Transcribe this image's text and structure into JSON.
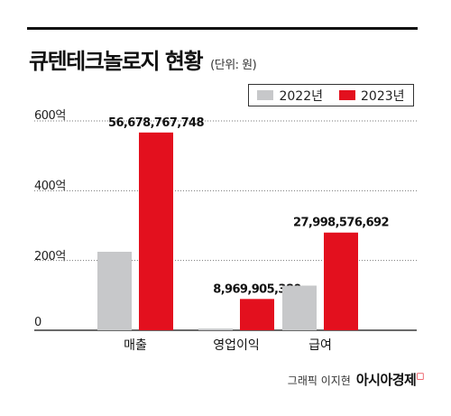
{
  "title": "큐텐테크놀로지 현황",
  "unit": "(단위: 원)",
  "legend": [
    {
      "label": "2022년",
      "color": "#c7c8ca"
    },
    {
      "label": "2023년",
      "color": "#e3101e"
    }
  ],
  "yticks": [
    "600억",
    "400억",
    "200억",
    "0"
  ],
  "footer": {
    "credit": "그래픽 이지현",
    "brand": "아시아경제"
  },
  "chart_data": {
    "type": "bar",
    "categories": [
      "매출",
      "영업이익",
      "급여"
    ],
    "series": [
      {
        "name": "2022년",
        "values": [
          22500000000,
          500000000,
          12800000000
        ]
      },
      {
        "name": "2023년",
        "values": [
          56678767748,
          8969905380,
          27998576692
        ]
      }
    ],
    "data_labels": [
      "56,678,767,748",
      "8,969,905,380",
      "27,998,576,692"
    ],
    "ylim": [
      0,
      60000000000
    ],
    "grid": true,
    "legend_position": "top-right"
  }
}
